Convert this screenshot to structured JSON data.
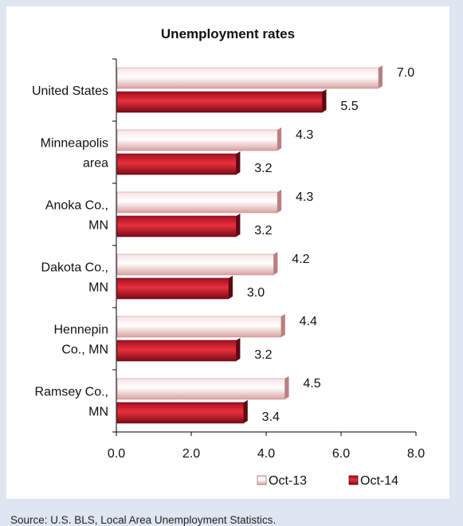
{
  "chart_data": {
    "type": "bar",
    "orientation": "horizontal",
    "title": "Unemployment rates",
    "categories": [
      "United States",
      "Minneapolis area",
      "Anoka Co., MN",
      "Dakota Co., MN",
      "Hennepin Co., MN",
      "Ramsey Co., MN"
    ],
    "category_lines": [
      [
        "United States"
      ],
      [
        "Minneapolis",
        "area"
      ],
      [
        "Anoka Co.,",
        "MN"
      ],
      [
        "Dakota Co.,",
        "MN"
      ],
      [
        "Hennepin",
        "Co., MN"
      ],
      [
        "Ramsey Co.,",
        "MN"
      ]
    ],
    "series": [
      {
        "name": "Oct-13",
        "values": [
          7.0,
          4.3,
          4.3,
          4.2,
          4.4,
          4.5
        ],
        "color": "#e9b9b9"
      },
      {
        "name": "Oct-14",
        "values": [
          5.5,
          3.2,
          3.2,
          3.0,
          3.2,
          3.4
        ],
        "color": "#c8102e"
      }
    ],
    "xlim": [
      0,
      8
    ],
    "xticks": [
      0,
      2,
      4,
      6,
      8
    ],
    "xtick_labels": [
      "0.0",
      "2.0",
      "4.0",
      "6.0",
      "8.0"
    ],
    "data_labels": [
      [
        "7.0",
        "4.3",
        "4.3",
        "4.2",
        "4.4",
        "4.5"
      ],
      [
        "5.5",
        "3.2",
        "3.2",
        "3.0",
        "3.2",
        "3.4"
      ]
    ],
    "grid": false,
    "legend": "bottom-right"
  },
  "source": "Source: U.S. BLS, Local Area Unemployment Statistics."
}
